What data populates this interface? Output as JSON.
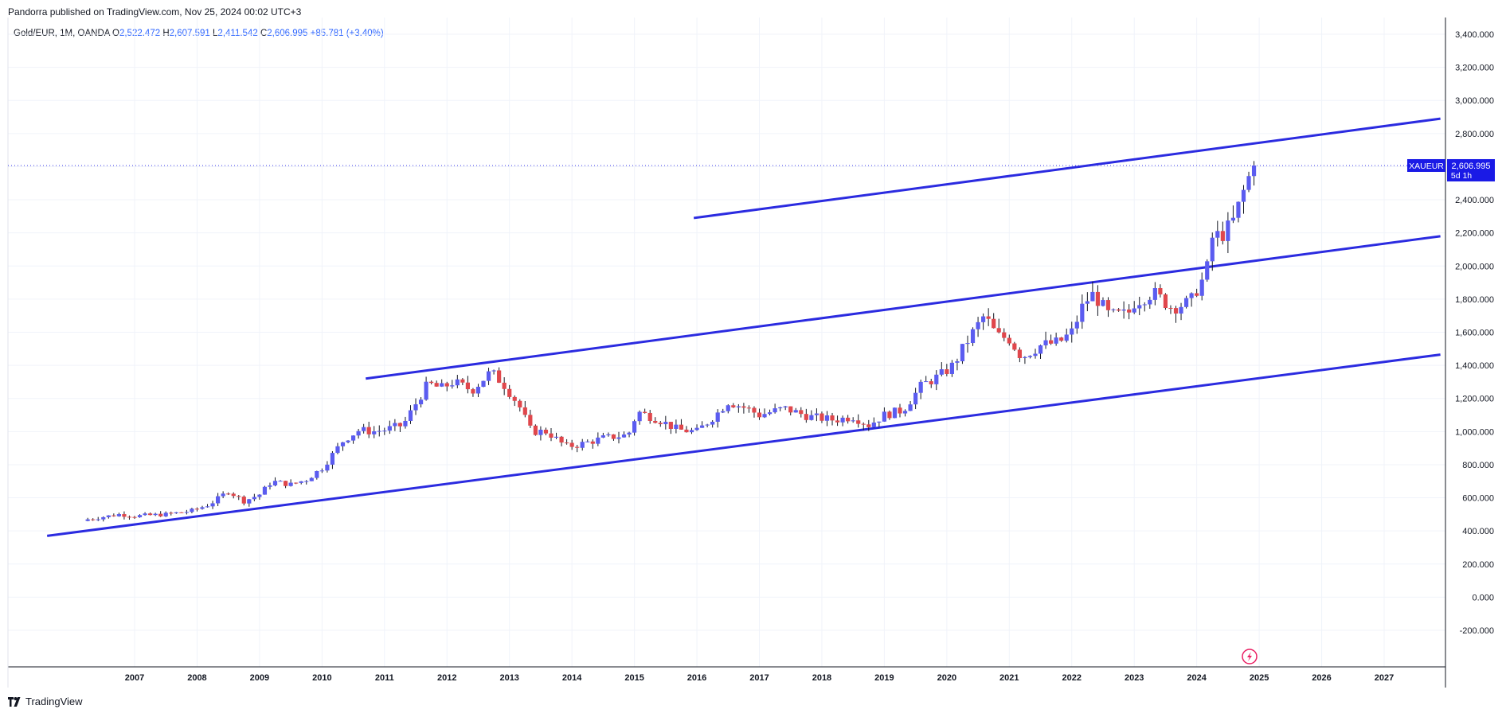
{
  "header": {
    "published": "Pandorra published on TradingView.com, Nov 25, 2024 00:02 UTC+3"
  },
  "legend": {
    "symbol": "Gold/EUR, 1M, OANDA",
    "open_label": "O",
    "open": "2,522.472",
    "high_label": "H",
    "high": "2,607.591",
    "low_label": "L",
    "low": "2,411.542",
    "close_label": "C",
    "close": "2,606.995",
    "change": "+85.781 (+3.40%)"
  },
  "price_badge": {
    "ticker": "XAUEUR",
    "price": "2,606.995",
    "countdown": "5d 1h"
  },
  "brand": {
    "name": "TradingView",
    "logo_icon": "tradingview-logo-icon"
  },
  "colors": {
    "up": "#5b5cf0",
    "down": "#e0474c",
    "trend": "#2b2be0",
    "grid": "#f0f3fa",
    "axis_text": "#131722"
  },
  "chart_data": {
    "type": "candlestick",
    "x_unit": "year",
    "xlim": [
      2006.0,
      2027.9
    ],
    "ylim": [
      -400,
      3500
    ],
    "y_ticks": [
      -200,
      0,
      200,
      400,
      600,
      800,
      1000,
      1200,
      1400,
      1600,
      1800,
      2000,
      2200,
      2400,
      2600,
      2800,
      3000,
      3200,
      3400
    ],
    "y_tick_labels": [
      "-200.000",
      "0.000",
      "200.000",
      "400.000",
      "600.000",
      "800.000",
      "1,000.000",
      "1,200.000",
      "1,400.000",
      "1,600.000",
      "1,800.000",
      "2,000.000",
      "2,200.000",
      "2,400.000",
      "2,600.000",
      "2,800.000",
      "3,000.000",
      "3,200.000",
      "3,400.000"
    ],
    "x_ticks": [
      "2007",
      "2008",
      "2009",
      "2010",
      "2011",
      "2012",
      "2013",
      "2014",
      "2015",
      "2016",
      "2017",
      "2018",
      "2019",
      "2020",
      "2021",
      "2022",
      "2023",
      "2024",
      "2025",
      "2026",
      "2027"
    ],
    "close_path": [
      [
        2006.25,
        470
      ],
      [
        2006.75,
        500
      ],
      [
        2007.0,
        490
      ],
      [
        2007.5,
        500
      ],
      [
        2007.9,
        520
      ],
      [
        2008.2,
        560
      ],
      [
        2008.5,
        640
      ],
      [
        2008.75,
        580
      ],
      [
        2009.0,
        620
      ],
      [
        2009.2,
        700
      ],
      [
        2009.5,
        680
      ],
      [
        2009.75,
        710
      ],
      [
        2010.0,
        780
      ],
      [
        2010.35,
        950
      ],
      [
        2010.6,
        1010
      ],
      [
        2010.8,
        1000
      ],
      [
        2011.0,
        1010
      ],
      [
        2011.3,
        1040
      ],
      [
        2011.55,
        1200
      ],
      [
        2011.7,
        1290
      ],
      [
        2011.9,
        1260
      ],
      [
        2012.1,
        1300
      ],
      [
        2012.4,
        1250
      ],
      [
        2012.7,
        1360
      ],
      [
        2012.9,
        1290
      ],
      [
        2013.15,
        1160
      ],
      [
        2013.35,
        1000
      ],
      [
        2013.6,
        1000
      ],
      [
        2013.9,
        910
      ],
      [
        2014.1,
        920
      ],
      [
        2014.5,
        960
      ],
      [
        2014.9,
        980
      ],
      [
        2015.05,
        1120
      ],
      [
        2015.4,
        1070
      ],
      [
        2015.7,
        1010
      ],
      [
        2016.0,
        1000
      ],
      [
        2016.3,
        1100
      ],
      [
        2016.5,
        1180
      ],
      [
        2016.8,
        1140
      ],
      [
        2017.0,
        1100
      ],
      [
        2017.4,
        1140
      ],
      [
        2017.8,
        1090
      ],
      [
        2018.2,
        1070
      ],
      [
        2018.5,
        1090
      ],
      [
        2018.75,
        1040
      ],
      [
        2019.0,
        1100
      ],
      [
        2019.3,
        1130
      ],
      [
        2019.6,
        1280
      ],
      [
        2019.9,
        1340
      ],
      [
        2020.1,
        1400
      ],
      [
        2020.35,
        1560
      ],
      [
        2020.6,
        1700
      ],
      [
        2020.8,
        1580
      ],
      [
        2021.0,
        1560
      ],
      [
        2021.2,
        1450
      ],
      [
        2021.5,
        1520
      ],
      [
        2021.8,
        1540
      ],
      [
        2022.0,
        1600
      ],
      [
        2022.2,
        1780
      ],
      [
        2022.35,
        1830
      ],
      [
        2022.6,
        1700
      ],
      [
        2022.9,
        1710
      ],
      [
        2023.0,
        1780
      ],
      [
        2023.3,
        1840
      ],
      [
        2023.6,
        1750
      ],
      [
        2023.9,
        1780
      ],
      [
        2024.0,
        1860
      ],
      [
        2024.15,
        1950
      ],
      [
        2024.25,
        2170
      ],
      [
        2024.45,
        2200
      ],
      [
        2024.6,
        2280
      ],
      [
        2024.72,
        2420
      ],
      [
        2024.82,
        2520
      ],
      [
        2024.9,
        2607
      ]
    ],
    "last_close": 2606.995,
    "trendlines": [
      {
        "from": [
          2005.6,
          370
        ],
        "to": [
          2027.9,
          1465
        ]
      },
      {
        "from": [
          2010.7,
          1320
        ],
        "to": [
          2027.9,
          2180
        ]
      },
      {
        "from": [
          2015.95,
          2290
        ],
        "to": [
          2027.9,
          2890
        ]
      }
    ],
    "grid": true
  }
}
